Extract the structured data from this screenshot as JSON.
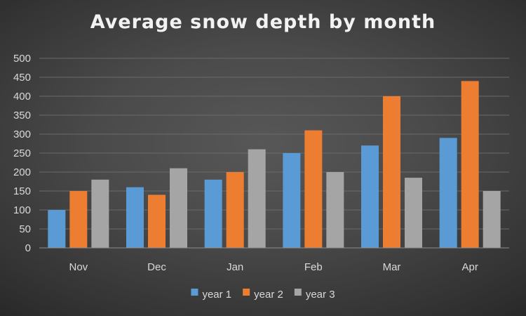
{
  "chart_data": {
    "type": "bar",
    "title": "Average snow depth by month",
    "xlabel": "",
    "ylabel": "",
    "categories": [
      "Nov",
      "Dec",
      "Jan",
      "Feb",
      "Mar",
      "Apr"
    ],
    "series": [
      {
        "name": "year 1",
        "color": "#5b9bd5",
        "values": [
          100,
          160,
          180,
          250,
          270,
          290
        ]
      },
      {
        "name": "year 2",
        "color": "#ed7d31",
        "values": [
          150,
          140,
          200,
          310,
          400,
          440
        ]
      },
      {
        "name": "year 3",
        "color": "#a5a5a5",
        "values": [
          180,
          210,
          260,
          200,
          185,
          150
        ]
      }
    ],
    "ylim": [
      0,
      500
    ],
    "yticks": [
      "0",
      "50",
      "100",
      "150",
      "200",
      "250",
      "300",
      "350",
      "400",
      "450",
      "500"
    ],
    "grid": true,
    "legend_position": "bottom"
  }
}
